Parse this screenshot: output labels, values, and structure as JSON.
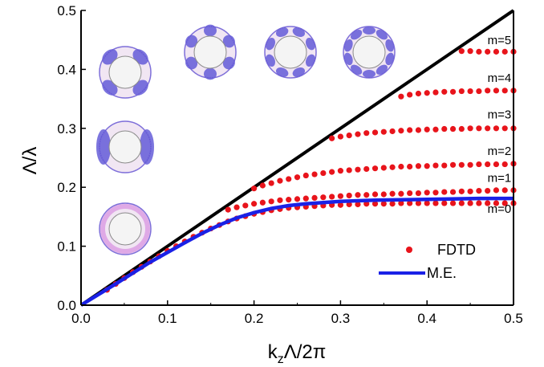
{
  "chart_data": {
    "type": "scatter",
    "xlabel_main": "k",
    "xlabel_sub": "z",
    "xlabel_rest": "Λ/2π",
    "ylabel": "Λ/λ",
    "xlim": [
      0.0,
      0.5
    ],
    "ylim": [
      0.0,
      0.5
    ],
    "x_ticks": [
      "0.0",
      "0.1",
      "0.2",
      "0.3",
      "0.4",
      "0.5"
    ],
    "y_ticks": [
      "0.0",
      "0.1",
      "0.2",
      "0.3",
      "0.4",
      "0.5"
    ],
    "grid": false,
    "legend_position": "bottom-right",
    "legend": {
      "fdtd": "FDTD",
      "me": "M.E."
    },
    "colors": {
      "fdtd": "#e8141b",
      "me": "#1a21e6",
      "lightline": "#000000"
    },
    "light_line": [
      [
        0,
        0
      ],
      [
        0.5,
        0.5
      ]
    ],
    "modes": [
      {
        "label": "m=0",
        "label_at": [
          0.47,
          0.157
        ],
        "points": [
          [
            0.03,
            0.026
          ],
          [
            0.04,
            0.036
          ],
          [
            0.05,
            0.046
          ],
          [
            0.06,
            0.056
          ],
          [
            0.07,
            0.065
          ],
          [
            0.08,
            0.074
          ],
          [
            0.09,
            0.083
          ],
          [
            0.1,
            0.092
          ],
          [
            0.11,
            0.1
          ],
          [
            0.12,
            0.108
          ],
          [
            0.13,
            0.116
          ],
          [
            0.14,
            0.123
          ],
          [
            0.15,
            0.13
          ],
          [
            0.16,
            0.136
          ],
          [
            0.17,
            0.142
          ],
          [
            0.18,
            0.147
          ],
          [
            0.19,
            0.151
          ],
          [
            0.2,
            0.155
          ],
          [
            0.21,
            0.158
          ],
          [
            0.22,
            0.161
          ],
          [
            0.23,
            0.163
          ],
          [
            0.24,
            0.165
          ],
          [
            0.25,
            0.166
          ],
          [
            0.26,
            0.167
          ],
          [
            0.27,
            0.168
          ],
          [
            0.28,
            0.169
          ],
          [
            0.29,
            0.17
          ],
          [
            0.3,
            0.17
          ],
          [
            0.31,
            0.171
          ],
          [
            0.32,
            0.171
          ],
          [
            0.33,
            0.172
          ],
          [
            0.34,
            0.172
          ],
          [
            0.35,
            0.172
          ],
          [
            0.36,
            0.172
          ],
          [
            0.37,
            0.173
          ],
          [
            0.38,
            0.173
          ],
          [
            0.39,
            0.173
          ],
          [
            0.4,
            0.173
          ],
          [
            0.41,
            0.173
          ],
          [
            0.42,
            0.173
          ],
          [
            0.43,
            0.173
          ],
          [
            0.44,
            0.173
          ],
          [
            0.45,
            0.173
          ],
          [
            0.46,
            0.173
          ],
          [
            0.47,
            0.173
          ],
          [
            0.48,
            0.173
          ],
          [
            0.49,
            0.173
          ],
          [
            0.5,
            0.173
          ]
        ]
      },
      {
        "label": "m=1",
        "label_at": [
          0.47,
          0.209
        ],
        "points": [
          [
            0.17,
            0.162
          ],
          [
            0.18,
            0.166
          ],
          [
            0.19,
            0.169
          ],
          [
            0.2,
            0.172
          ],
          [
            0.21,
            0.174
          ],
          [
            0.22,
            0.176
          ],
          [
            0.23,
            0.178
          ],
          [
            0.24,
            0.179
          ],
          [
            0.25,
            0.18
          ],
          [
            0.26,
            0.181
          ],
          [
            0.27,
            0.182
          ],
          [
            0.28,
            0.183
          ],
          [
            0.29,
            0.184
          ],
          [
            0.3,
            0.185
          ],
          [
            0.31,
            0.186
          ],
          [
            0.32,
            0.187
          ],
          [
            0.33,
            0.187
          ],
          [
            0.34,
            0.188
          ],
          [
            0.35,
            0.188
          ],
          [
            0.36,
            0.189
          ],
          [
            0.37,
            0.189
          ],
          [
            0.38,
            0.19
          ],
          [
            0.39,
            0.19
          ],
          [
            0.4,
            0.191
          ],
          [
            0.41,
            0.191
          ],
          [
            0.42,
            0.192
          ],
          [
            0.43,
            0.192
          ],
          [
            0.44,
            0.193
          ],
          [
            0.45,
            0.193
          ],
          [
            0.46,
            0.194
          ],
          [
            0.47,
            0.194
          ],
          [
            0.48,
            0.195
          ],
          [
            0.49,
            0.195
          ],
          [
            0.5,
            0.195
          ]
        ]
      },
      {
        "label": "m=2",
        "label_at": [
          0.47,
          0.255
        ],
        "points": [
          [
            0.2,
            0.198
          ],
          [
            0.21,
            0.203
          ],
          [
            0.22,
            0.207
          ],
          [
            0.23,
            0.211
          ],
          [
            0.24,
            0.214
          ],
          [
            0.25,
            0.217
          ],
          [
            0.26,
            0.22
          ],
          [
            0.27,
            0.222
          ],
          [
            0.28,
            0.224
          ],
          [
            0.29,
            0.226
          ],
          [
            0.3,
            0.228
          ],
          [
            0.31,
            0.229
          ],
          [
            0.32,
            0.23
          ],
          [
            0.33,
            0.231
          ],
          [
            0.34,
            0.232
          ],
          [
            0.35,
            0.233
          ],
          [
            0.36,
            0.234
          ],
          [
            0.37,
            0.235
          ],
          [
            0.38,
            0.235
          ],
          [
            0.39,
            0.236
          ],
          [
            0.4,
            0.236
          ],
          [
            0.41,
            0.237
          ],
          [
            0.42,
            0.237
          ],
          [
            0.43,
            0.238
          ],
          [
            0.44,
            0.238
          ],
          [
            0.45,
            0.238
          ],
          [
            0.46,
            0.239
          ],
          [
            0.47,
            0.239
          ],
          [
            0.48,
            0.239
          ],
          [
            0.49,
            0.239
          ],
          [
            0.5,
            0.24
          ]
        ]
      },
      {
        "label": "m=3",
        "label_at": [
          0.47,
          0.317
        ],
        "points": [
          [
            0.29,
            0.283
          ],
          [
            0.3,
            0.286
          ],
          [
            0.31,
            0.288
          ],
          [
            0.32,
            0.29
          ],
          [
            0.33,
            0.292
          ],
          [
            0.34,
            0.293
          ],
          [
            0.35,
            0.294
          ],
          [
            0.36,
            0.295
          ],
          [
            0.37,
            0.296
          ],
          [
            0.38,
            0.297
          ],
          [
            0.39,
            0.297
          ],
          [
            0.4,
            0.298
          ],
          [
            0.41,
            0.298
          ],
          [
            0.42,
            0.299
          ],
          [
            0.43,
            0.299
          ],
          [
            0.44,
            0.299
          ],
          [
            0.45,
            0.3
          ],
          [
            0.46,
            0.3
          ],
          [
            0.47,
            0.3
          ],
          [
            0.48,
            0.3
          ],
          [
            0.49,
            0.3
          ],
          [
            0.5,
            0.3
          ]
        ]
      },
      {
        "label": "m=4",
        "label_at": [
          0.47,
          0.379
        ],
        "points": [
          [
            0.37,
            0.354
          ],
          [
            0.38,
            0.357
          ],
          [
            0.39,
            0.359
          ],
          [
            0.4,
            0.36
          ],
          [
            0.41,
            0.361
          ],
          [
            0.42,
            0.362
          ],
          [
            0.43,
            0.362
          ],
          [
            0.44,
            0.363
          ],
          [
            0.45,
            0.363
          ],
          [
            0.46,
            0.363
          ],
          [
            0.47,
            0.364
          ],
          [
            0.48,
            0.364
          ],
          [
            0.49,
            0.364
          ],
          [
            0.5,
            0.364
          ]
        ]
      },
      {
        "label": "m=5",
        "label_at": [
          0.47,
          0.443
        ],
        "points": [
          [
            0.44,
            0.431
          ],
          [
            0.45,
            0.431
          ],
          [
            0.46,
            0.43
          ],
          [
            0.47,
            0.43
          ],
          [
            0.48,
            0.43
          ],
          [
            0.49,
            0.43
          ],
          [
            0.5,
            0.43
          ]
        ]
      }
    ],
    "me_curve": [
      [
        0.0,
        0.0
      ],
      [
        0.04,
        0.036
      ],
      [
        0.08,
        0.073
      ],
      [
        0.12,
        0.106
      ],
      [
        0.14,
        0.122
      ],
      [
        0.16,
        0.136
      ],
      [
        0.18,
        0.148
      ],
      [
        0.2,
        0.157
      ],
      [
        0.22,
        0.164
      ],
      [
        0.24,
        0.169
      ],
      [
        0.26,
        0.172
      ],
      [
        0.28,
        0.174
      ],
      [
        0.3,
        0.176
      ],
      [
        0.34,
        0.178
      ],
      [
        0.38,
        0.179
      ],
      [
        0.42,
        0.18
      ],
      [
        0.46,
        0.181
      ],
      [
        0.5,
        0.181
      ]
    ],
    "insets": [
      {
        "name": "inset-mode-0",
        "lobes": 0
      },
      {
        "name": "inset-mode-1",
        "lobes": 2
      },
      {
        "name": "inset-mode-2",
        "lobes": 4
      },
      {
        "name": "inset-mode-3",
        "lobes": 6
      },
      {
        "name": "inset-mode-4",
        "lobes": 8
      },
      {
        "name": "inset-mode-5",
        "lobes": 10
      }
    ]
  }
}
